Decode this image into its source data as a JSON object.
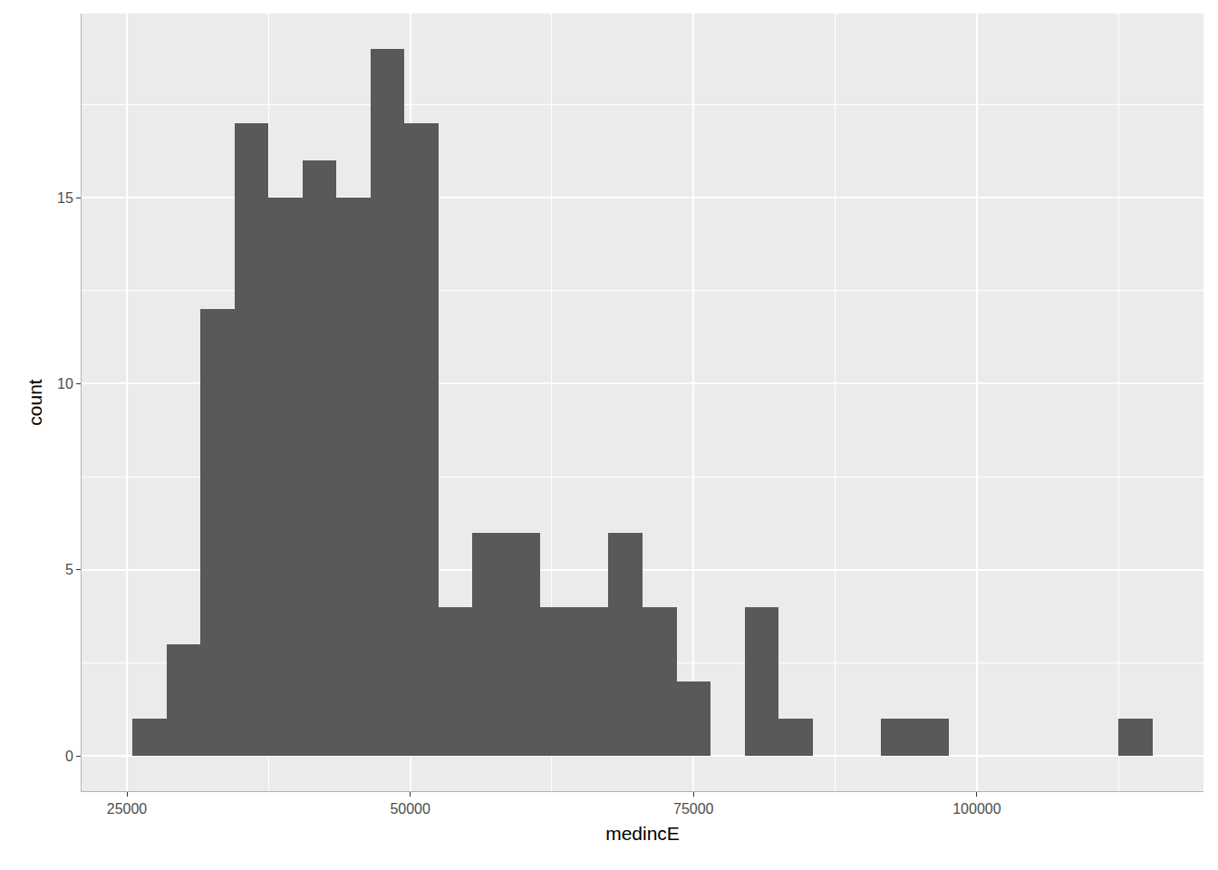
{
  "chart_data": {
    "type": "histogram",
    "x_label": "medincE",
    "y_label": "count",
    "bins": [
      25500,
      28500,
      31500,
      34500,
      37500,
      40500,
      43500,
      46500,
      49500,
      52500,
      55500,
      58500,
      61500,
      64500,
      67500,
      70500,
      73500,
      76500,
      79500,
      82500,
      85500,
      88500,
      91500,
      94500,
      97500,
      100500,
      103500,
      106500,
      109500,
      112500,
      115500
    ],
    "counts": [
      1,
      3,
      12,
      17,
      15,
      16,
      15,
      19,
      17,
      4,
      6,
      6,
      4,
      4,
      6,
      4,
      2,
      0,
      4,
      1,
      0,
      0,
      1,
      1,
      0,
      0,
      0,
      0,
      0,
      1
    ],
    "color": "#595959",
    "xlim": [
      21000,
      120000
    ],
    "xticks": [
      25000,
      50000,
      75000,
      100000
    ],
    "ylim": [
      -0.95,
      19.95
    ],
    "yticks": [
      0,
      5,
      10,
      15
    ],
    "grid": true
  }
}
